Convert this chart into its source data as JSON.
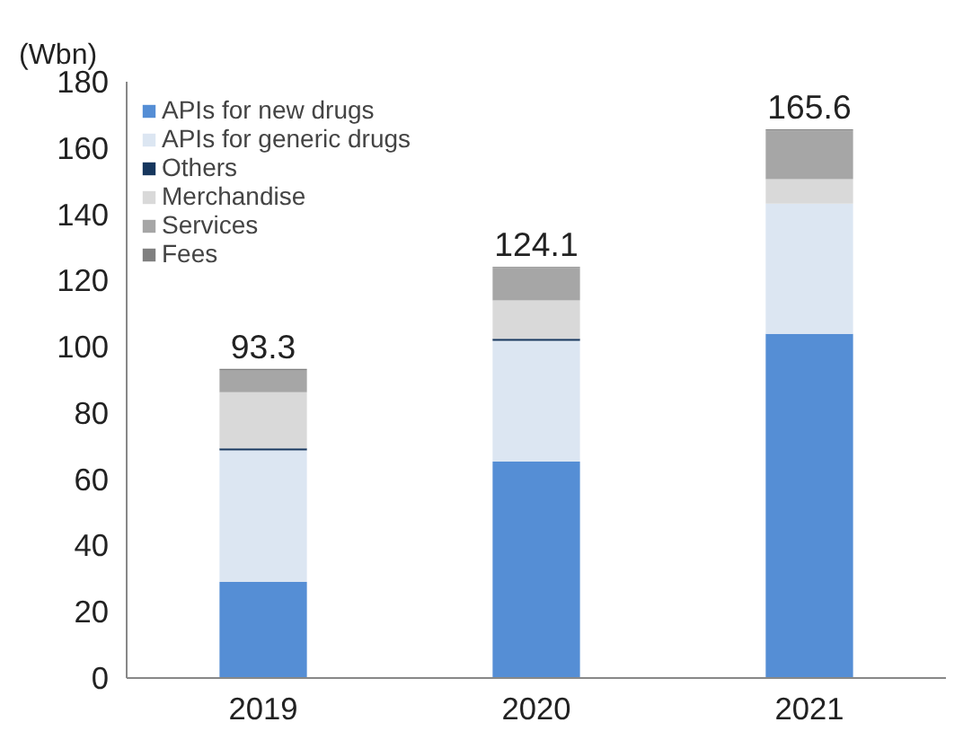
{
  "chart_data": {
    "type": "bar",
    "stacked": true,
    "ylabel": "(Wbn)",
    "categories": [
      "2019",
      "2020",
      "2021"
    ],
    "series": [
      {
        "name": "APIs for new drugs",
        "color": "#558ed5",
        "values": [
          29.0,
          65.3,
          103.9
        ]
      },
      {
        "name": "APIs for generic drugs",
        "color": "#dce6f2",
        "values": [
          39.7,
          36.5,
          39.3
        ]
      },
      {
        "name": "Others",
        "color": "#17375e",
        "values": [
          0.6,
          0.6,
          0
        ]
      },
      {
        "name": "Merchandise",
        "color": "#d9d9d9",
        "values": [
          17.0,
          11.6,
          7.4
        ]
      },
      {
        "name": "Services",
        "color": "#a6a6a6",
        "values": [
          6.7,
          9.8,
          14.7
        ]
      },
      {
        "name": "Fees",
        "color": "#808080",
        "values": [
          0.3,
          0.3,
          0.3
        ]
      }
    ],
    "totals": [
      "93.3",
      "124.1",
      "165.6"
    ],
    "ylim": [
      0,
      180
    ],
    "yticks": [
      0,
      20,
      40,
      60,
      80,
      100,
      120,
      140,
      160,
      180
    ],
    "grid": false,
    "legend": "top left"
  }
}
